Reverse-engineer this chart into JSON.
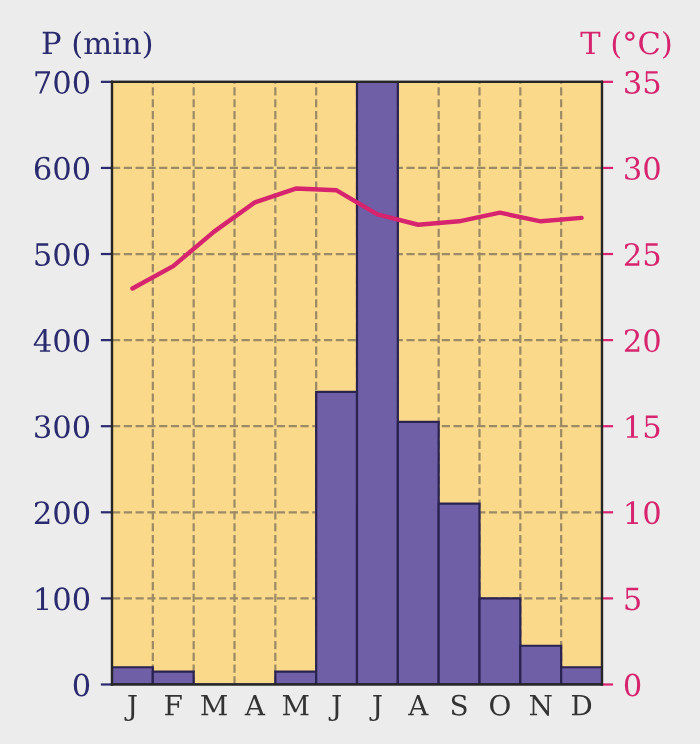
{
  "chart_data": {
    "type": "bar",
    "ylabel": "P (min)",
    "y2label": "T (°C)",
    "categories": [
      "J",
      "F",
      "M",
      "A",
      "M",
      "J",
      "J",
      "A",
      "S",
      "O",
      "N",
      "D"
    ],
    "series": [
      {
        "color": "#6f5fa6",
        "values": [
          20,
          15,
          0,
          0,
          15,
          340,
          700,
          305,
          210,
          100,
          45,
          20
        ]
      },
      {
        "type": "line",
        "axis": "y2",
        "color": "#d6246e",
        "values": [
          23.0,
          24.3,
          26.3,
          28.0,
          28.8,
          28.7,
          27.3,
          26.7,
          26.9,
          27.4,
          26.9,
          27.1
        ]
      }
    ],
    "ylim": [
      0,
      700
    ],
    "yticks": [
      0,
      100,
      200,
      300,
      400,
      500,
      600,
      700
    ],
    "y2lim": [
      0,
      35
    ],
    "y2ticks": [
      0,
      5,
      10,
      15,
      20,
      25,
      30,
      35
    ],
    "grid": true,
    "line_style": "solid",
    "marker": "none"
  }
}
